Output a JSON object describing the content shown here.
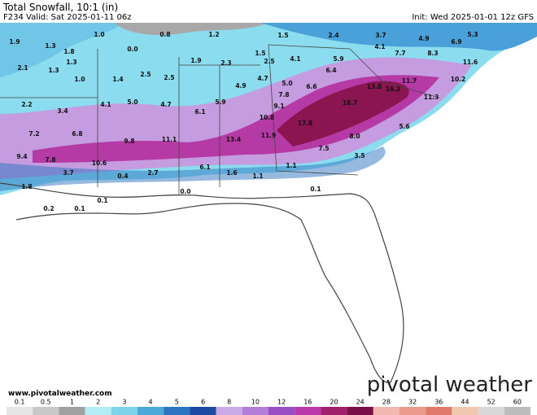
{
  "header": {
    "title": "Total Snowfall, 10:1 (in)",
    "valid": "F234 Valid: Sat 2025-01-11 06z",
    "init": "Init: Wed 2025-01-01 12z GFS"
  },
  "footer": {
    "url": "www.pivotalweather.com",
    "brand": "pivotal weather"
  },
  "map_labels": [
    "1.9",
    "1.3",
    "1.8",
    "1.3",
    "1.0",
    "0.8",
    "0.0",
    "1.2",
    "1.5",
    "2.4",
    "3.7",
    "4.9",
    "5.3",
    "6.9",
    "4.1",
    "7.7",
    "8.3",
    "11.6",
    "2.1",
    "1.3",
    "1.0",
    "1.4",
    "2.5",
    "2.5",
    "1.9",
    "2.3",
    "1.5",
    "2.5",
    "4.1",
    "5.9",
    "6.4",
    "4.7",
    "4.9",
    "5.0",
    "6.6",
    "13.8",
    "16.2",
    "11.7",
    "10.2",
    "11.3",
    "2.2",
    "3.4",
    "4.1",
    "5.0",
    "4.7",
    "6.1",
    "5.9",
    "9.1",
    "7.8",
    "18.7",
    "10.8",
    "17.8",
    "5.6",
    "7.2",
    "6.8",
    "9.8",
    "11.1",
    "13.4",
    "11.9",
    "8.0",
    "7.5",
    "3.5",
    "9.4",
    "7.8",
    "10.6",
    "3.7",
    "2.7",
    "0.4",
    "6.1",
    "1.6",
    "1.1",
    "1.1",
    "0.0",
    "0.1",
    "1.8",
    "0.1",
    "0.2",
    "0.1"
  ],
  "colorbar": {
    "ticks": [
      "0.1",
      "0.5",
      "1",
      "2",
      "3",
      "4",
      "5",
      "6",
      "8",
      "10",
      "12",
      "16",
      "20",
      "24",
      "28",
      "32",
      "36",
      "44",
      "52",
      "60"
    ],
    "colors": [
      "#e6e6e6",
      "#c8c8c8",
      "#a0a0a0",
      "#b4ecf5",
      "#7dd3ea",
      "#4aa9d8",
      "#2b74c0",
      "#1c4aa3",
      "#c9a9e6",
      "#b27ed8",
      "#9a4fc4",
      "#b93aa8",
      "#a0206e",
      "#7a0f48",
      "#f2b8b0",
      "#eb9a8c",
      "#e07a6c",
      "#f0c8b0",
      "#d8d8d8",
      "#bcbcbc"
    ]
  }
}
